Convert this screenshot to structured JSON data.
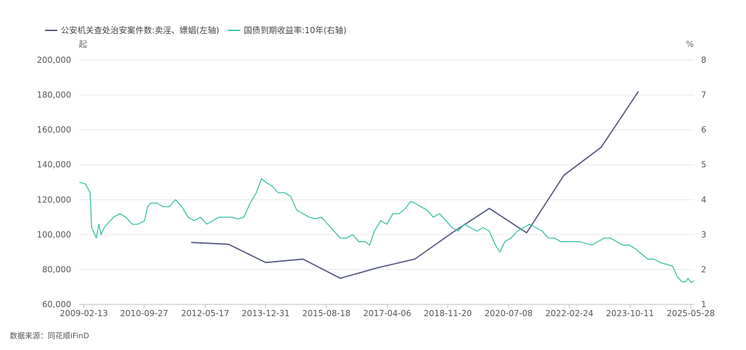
{
  "colors": {
    "left_series": "#555a80",
    "right_series": "#3fbfa6",
    "grid": "#e6e6e6",
    "axis": "#bdbdbd"
  },
  "source": "数据来源：同花顺iFinD",
  "chart_data": {
    "type": "line",
    "title": "",
    "grid": true,
    "legend_position": "top-left",
    "left_axis": {
      "unit": "起",
      "ylim": [
        60000,
        200000
      ],
      "ticks": [
        "60,000",
        "80,000",
        "100,000",
        "120,000",
        "140,000",
        "160,000",
        "180,000",
        "200,000"
      ]
    },
    "right_axis": {
      "unit": "%",
      "ylim": [
        1,
        8
      ],
      "ticks": [
        "1",
        "2",
        "3",
        "4",
        "5",
        "6",
        "7",
        "8"
      ]
    },
    "x_axis": {
      "range": [
        "2009-01-01",
        "2025-07-01"
      ],
      "ticks": [
        "2009-02-13",
        "2010-09-27",
        "2012-05-17",
        "2013-12-31",
        "2015-08-18",
        "2017-04-06",
        "2018-11-20",
        "2020-07-08",
        "2022-02-24",
        "2023-10-11",
        "2025-05-28"
      ]
    },
    "series": [
      {
        "name": "公安机关查处治安案件数:卖淫、嫖娼(左轴)",
        "axis": "left",
        "x": [
          "2012-01-01",
          "2013-01-01",
          "2014-01-01",
          "2015-01-01",
          "2016-01-01",
          "2017-01-01",
          "2018-01-01",
          "2019-01-01",
          "2020-01-01",
          "2021-01-01",
          "2022-01-01",
          "2023-01-01",
          "2024-01-01"
        ],
        "values": [
          95500,
          94500,
          84000,
          86000,
          75000,
          81000,
          86000,
          101000,
          115000,
          101000,
          134000,
          150000,
          182000
        ]
      },
      {
        "name": "国债到期收益率:10年(右轴)",
        "axis": "right",
        "x": [
          "2009-01-01",
          "2009-03-01",
          "2009-04-15",
          "2009-05-01",
          "2009-06-15",
          "2009-07-10",
          "2009-08-01",
          "2009-09-01",
          "2009-10-01",
          "2009-12-01",
          "2010-02-01",
          "2010-04-01",
          "2010-06-01",
          "2010-08-01",
          "2010-10-01",
          "2010-11-01",
          "2010-12-01",
          "2011-02-01",
          "2011-04-01",
          "2011-06-01",
          "2011-08-01",
          "2011-10-01",
          "2011-12-01",
          "2012-02-01",
          "2012-04-01",
          "2012-06-01",
          "2012-08-01",
          "2012-10-01",
          "2012-12-01",
          "2013-02-01",
          "2013-04-01",
          "2013-06-01",
          "2013-08-01",
          "2013-10-01",
          "2013-11-20",
          "2014-01-01",
          "2014-03-01",
          "2014-05-01",
          "2014-07-01",
          "2014-09-01",
          "2014-11-01",
          "2015-01-01",
          "2015-03-01",
          "2015-05-01",
          "2015-07-01",
          "2015-09-01",
          "2015-11-01",
          "2016-01-01",
          "2016-03-01",
          "2016-05-01",
          "2016-07-01",
          "2016-09-01",
          "2016-10-15",
          "2016-12-01",
          "2017-02-01",
          "2017-04-01",
          "2017-06-01",
          "2017-08-01",
          "2017-10-01",
          "2017-11-20",
          "2018-01-01",
          "2018-03-01",
          "2018-05-01",
          "2018-07-01",
          "2018-09-01",
          "2018-11-01",
          "2019-01-01",
          "2019-03-01",
          "2019-05-01",
          "2019-07-01",
          "2019-09-01",
          "2019-11-01",
          "2020-01-01",
          "2020-03-01",
          "2020-04-15",
          "2020-06-01",
          "2020-08-01",
          "2020-10-01",
          "2020-12-01",
          "2021-02-01",
          "2021-04-01",
          "2021-06-01",
          "2021-08-01",
          "2021-10-01",
          "2021-12-01",
          "2022-02-01",
          "2022-04-01",
          "2022-06-01",
          "2022-08-01",
          "2022-10-01",
          "2022-12-01",
          "2023-02-01",
          "2023-04-01",
          "2023-06-01",
          "2023-08-01",
          "2023-10-01",
          "2023-12-01",
          "2024-02-01",
          "2024-04-01",
          "2024-06-01",
          "2024-08-01",
          "2024-10-01",
          "2024-12-01",
          "2025-01-15",
          "2025-03-01",
          "2025-04-10",
          "2025-05-01",
          "2025-06-01",
          "2025-06-30"
        ],
        "values": [
          4.5,
          4.45,
          4.2,
          3.2,
          2.9,
          3.3,
          3.0,
          3.2,
          3.3,
          3.5,
          3.6,
          3.5,
          3.3,
          3.3,
          3.4,
          3.8,
          3.9,
          3.9,
          3.8,
          3.8,
          4.0,
          3.8,
          3.5,
          3.4,
          3.5,
          3.3,
          3.4,
          3.5,
          3.5,
          3.5,
          3.45,
          3.5,
          3.9,
          4.2,
          4.6,
          4.5,
          4.4,
          4.2,
          4.2,
          4.1,
          3.7,
          3.6,
          3.5,
          3.45,
          3.5,
          3.3,
          3.1,
          2.9,
          2.9,
          3.0,
          2.8,
          2.8,
          2.7,
          3.1,
          3.4,
          3.3,
          3.6,
          3.6,
          3.75,
          3.95,
          3.9,
          3.8,
          3.7,
          3.5,
          3.6,
          3.4,
          3.2,
          3.1,
          3.3,
          3.2,
          3.1,
          3.2,
          3.1,
          2.7,
          2.5,
          2.8,
          2.9,
          3.1,
          3.2,
          3.3,
          3.2,
          3.1,
          2.9,
          2.9,
          2.8,
          2.8,
          2.8,
          2.8,
          2.75,
          2.7,
          2.8,
          2.9,
          2.9,
          2.8,
          2.7,
          2.7,
          2.6,
          2.45,
          2.3,
          2.3,
          2.2,
          2.15,
          2.1,
          1.8,
          1.65,
          1.65,
          1.75,
          1.63,
          1.68
        ]
      }
    ]
  }
}
